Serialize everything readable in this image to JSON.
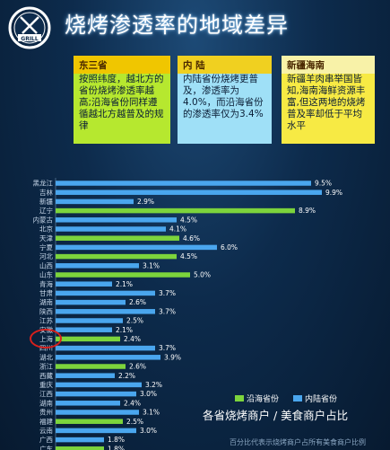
{
  "header": {
    "logo_text": "GRILL",
    "title": "烧烤渗透率的地域差异"
  },
  "boxes": [
    {
      "heading": "东三省",
      "text": "按照纬度，越北方的省份烧烤渗透率越高;沿海省份同样遵循越北方越普及的规律"
    },
    {
      "heading": "内 陆",
      "text": "内陆省份烧烤更普及，渗透率为4.0%，而沿海省份的渗透率仅为3.4%"
    },
    {
      "heading": "新疆海南",
      "text": "新疆羊肉串举国皆知,海南海鲜资源丰富,但这两地的烧烤普及率却低于平均水平"
    }
  ],
  "chart_data": {
    "type": "bar",
    "orientation": "horizontal",
    "categories": [
      "黑龙江",
      "吉林",
      "新疆",
      "辽宁",
      "内蒙古",
      "北京",
      "天津",
      "宁夏",
      "河北",
      "山西",
      "山东",
      "青海",
      "甘肃",
      "湖南",
      "陕西",
      "江苏",
      "安徽",
      "上海",
      "四川",
      "湖北",
      "浙江",
      "西藏",
      "重庆",
      "江西",
      "湖南",
      "贵州",
      "福建",
      "云南",
      "广西",
      "广东"
    ],
    "series": [
      {
        "name": "沿海省份",
        "color": "#7cd43c",
        "values": [
          null,
          null,
          null,
          8.9,
          null,
          null,
          4.6,
          null,
          4.5,
          null,
          5.0,
          null,
          null,
          null,
          null,
          null,
          null,
          2.4,
          null,
          null,
          2.6,
          null,
          null,
          null,
          null,
          null,
          2.5,
          null,
          null,
          1.8
        ]
      },
      {
        "name": "内陆省份",
        "color": "#4aa6ee",
        "values": [
          9.5,
          9.9,
          2.9,
          null,
          4.5,
          4.1,
          null,
          6.0,
          null,
          3.1,
          null,
          2.1,
          3.7,
          2.6,
          3.7,
          2.5,
          2.1,
          null,
          3.7,
          3.9,
          null,
          2.2,
          3.2,
          3.0,
          2.4,
          3.1,
          null,
          3.0,
          1.8,
          null
        ]
      }
    ],
    "highlight": "上海",
    "xlim": [
      0,
      10
    ],
    "legend_position": "bottom-right",
    "subtitle": "各省烧烤商户 / 美食商户占比",
    "note": "百分比代表示烧烤商户占所有美食商户比例"
  }
}
